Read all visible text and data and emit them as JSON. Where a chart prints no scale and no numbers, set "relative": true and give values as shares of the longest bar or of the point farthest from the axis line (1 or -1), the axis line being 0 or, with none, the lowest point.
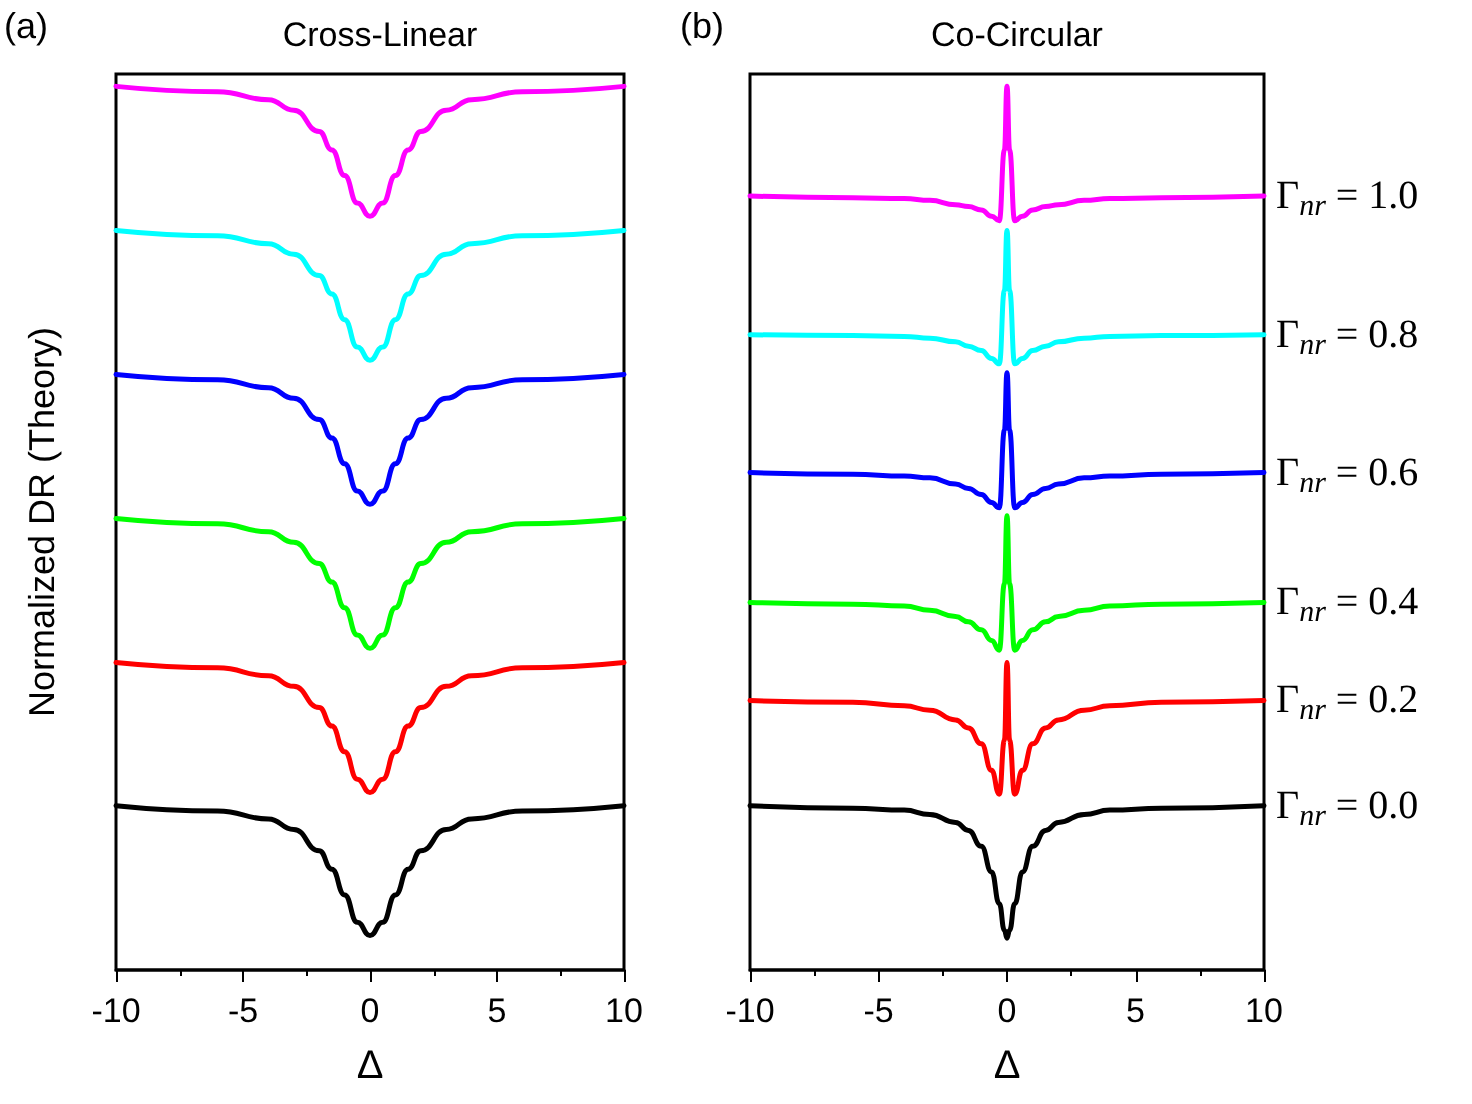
{
  "chart_data": [
    {
      "type": "line",
      "title": "Cross-Linear",
      "xlabel": "Δ",
      "ylabel": "Normalized DR (Theory)",
      "annotations": [
        "(a)"
      ],
      "relative": true,
      "x": [
        -10,
        -6,
        -4,
        -3,
        -2,
        -1.5,
        -1,
        -0.5,
        0,
        0.5,
        1,
        1.5,
        2,
        3,
        4,
        6,
        10
      ],
      "xlim": [
        -10,
        10
      ],
      "xticks": [
        -10,
        -5,
        0,
        5,
        10
      ],
      "series": [
        {
          "color": "#000000",
          "values": [
            0.186,
            0.18,
            0.171,
            0.159,
            0.135,
            0.114,
            0.085,
            0.054,
            0.039,
            0.054,
            0.085,
            0.114,
            0.135,
            0.159,
            0.171,
            0.18,
            0.186
          ]
        },
        {
          "color": "#ff0000",
          "values": [
            0.348,
            0.342,
            0.333,
            0.321,
            0.297,
            0.276,
            0.247,
            0.216,
            0.201,
            0.216,
            0.247,
            0.276,
            0.297,
            0.321,
            0.333,
            0.342,
            0.348
          ]
        },
        {
          "color": "#00ff00",
          "values": [
            0.511,
            0.505,
            0.496,
            0.484,
            0.46,
            0.439,
            0.41,
            0.379,
            0.364,
            0.379,
            0.41,
            0.439,
            0.46,
            0.484,
            0.496,
            0.505,
            0.511
          ]
        },
        {
          "color": "#0000ff",
          "values": [
            0.674,
            0.668,
            0.659,
            0.647,
            0.623,
            0.602,
            0.573,
            0.542,
            0.527,
            0.542,
            0.573,
            0.602,
            0.623,
            0.647,
            0.659,
            0.668,
            0.674
          ]
        },
        {
          "color": "#00ffff",
          "values": [
            0.837,
            0.831,
            0.822,
            0.81,
            0.786,
            0.765,
            0.736,
            0.705,
            0.69,
            0.705,
            0.736,
            0.765,
            0.786,
            0.81,
            0.822,
            0.831,
            0.837
          ]
        },
        {
          "color": "#ff00ff",
          "values": [
            1.0,
            0.994,
            0.985,
            0.973,
            0.949,
            0.928,
            0.899,
            0.868,
            0.853,
            0.868,
            0.899,
            0.928,
            0.949,
            0.973,
            0.985,
            0.994,
            1.0
          ]
        }
      ]
    },
    {
      "type": "line",
      "title": "Co-Circular",
      "xlabel": "Δ",
      "annotations": [
        "(b)"
      ],
      "relative": true,
      "x": [
        -10,
        -6,
        -4,
        -3,
        -2,
        -1.5,
        -1,
        -0.6,
        -0.3,
        -0.1,
        0,
        0.1,
        0.3,
        0.6,
        1,
        1.5,
        2,
        3,
        4,
        6,
        10
      ],
      "xlim": [
        -10,
        10
      ],
      "xticks": [
        -10,
        -5,
        0,
        5,
        10
      ],
      "series": [
        {
          "name": "Γ$_{nr}$ = 0.0",
          "color": "#000000",
          "values": [
            0.186,
            0.183,
            0.181,
            0.176,
            0.167,
            0.158,
            0.14,
            0.111,
            0.075,
            0.045,
            0.036,
            0.045,
            0.075,
            0.111,
            0.14,
            0.158,
            0.167,
            0.176,
            0.181,
            0.183,
            0.186
          ]
        },
        {
          "name": "Γ$_{nr}$ = 0.2",
          "color": "#ff0000",
          "values": [
            0.305,
            0.303,
            0.299,
            0.294,
            0.283,
            0.274,
            0.256,
            0.226,
            0.199,
            0.26,
            0.348,
            0.26,
            0.199,
            0.226,
            0.256,
            0.274,
            0.283,
            0.294,
            0.299,
            0.303,
            0.305
          ]
        },
        {
          "name": "Γ$_{nr}$ = 0.4",
          "color": "#00ff00",
          "values": [
            0.416,
            0.414,
            0.412,
            0.407,
            0.4,
            0.394,
            0.385,
            0.373,
            0.362,
            0.437,
            0.514,
            0.437,
            0.362,
            0.373,
            0.385,
            0.394,
            0.4,
            0.407,
            0.412,
            0.414,
            0.416
          ]
        },
        {
          "name": "Γ$_{nr}$ = 0.6",
          "color": "#0000ff",
          "values": [
            0.563,
            0.561,
            0.559,
            0.557,
            0.55,
            0.545,
            0.538,
            0.529,
            0.523,
            0.611,
            0.676,
            0.611,
            0.523,
            0.529,
            0.538,
            0.545,
            0.55,
            0.557,
            0.559,
            0.561,
            0.563
          ]
        },
        {
          "name": "Γ$_{nr}$ = 0.8",
          "color": "#00ffff",
          "values": [
            0.719,
            0.718,
            0.717,
            0.715,
            0.711,
            0.706,
            0.701,
            0.692,
            0.686,
            0.769,
            0.837,
            0.769,
            0.686,
            0.692,
            0.701,
            0.706,
            0.711,
            0.715,
            0.717,
            0.718,
            0.719
          ]
        },
        {
          "name": "Γ$_{nr}$ = 1.0",
          "color": "#ff00ff",
          "values": [
            0.876,
            0.874,
            0.873,
            0.871,
            0.866,
            0.864,
            0.86,
            0.853,
            0.848,
            0.928,
            1.0,
            0.928,
            0.848,
            0.853,
            0.86,
            0.864,
            0.866,
            0.871,
            0.873,
            0.874,
            0.876
          ]
        }
      ]
    }
  ]
}
